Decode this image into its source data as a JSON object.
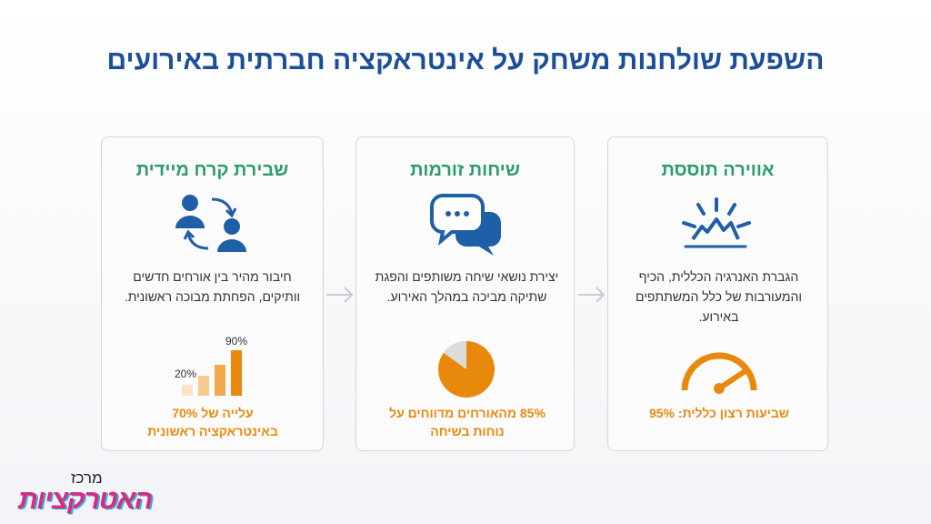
{
  "title": "השפעת שולחנות משחק על אינטראקציה חברתית באירועים",
  "cards": [
    {
      "heading": "אווירה תוססת",
      "description": "הגברת האנרגיה הכללית, הכיף והמעורבות של כלל המשתתפים באירוע.",
      "stat": "שביעות רצון כללית: 95%"
    },
    {
      "heading": "שיחות זורמות",
      "description": "יצירת נושאי שיחה משותפים והפגת שתיקה מביכה במהלך האירוע.",
      "stat": "85% מהאורחים מדווחים על נוחות בשיחה"
    },
    {
      "heading": "שבירת קרח מיידית",
      "description": "חיבור מהיר בין אורחים חדשים וותיקים, הפחתת מבוכה ראשונית.",
      "chart_labels": [
        "20%",
        "90%"
      ],
      "stat": "עלייה של 70% באינטראקציה ראשונית"
    }
  ],
  "logo": {
    "line1": "מרכז",
    "line2": "האטרקציות"
  }
}
